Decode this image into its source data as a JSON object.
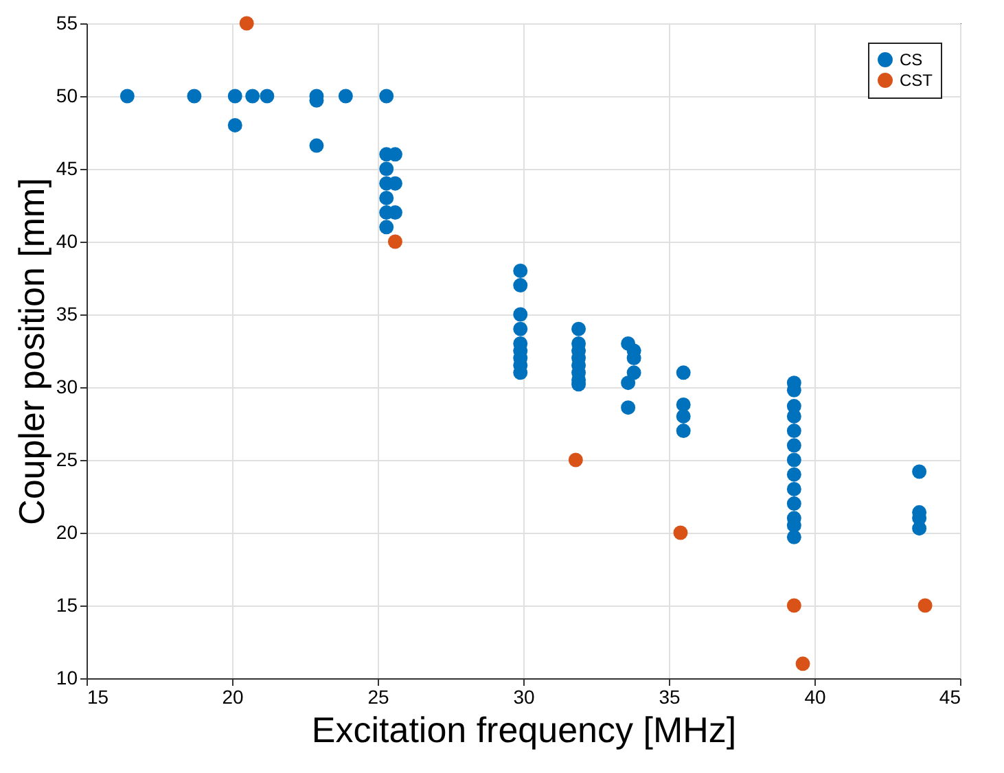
{
  "chart_data": {
    "type": "scatter",
    "xlabel": "Excitation frequency [MHz]",
    "ylabel": "Coupler position [mm]",
    "xlim": [
      15,
      45
    ],
    "xticks": [
      15,
      20,
      25,
      30,
      35,
      40,
      45
    ],
    "ylim": [
      10,
      55
    ],
    "yticks": [
      10,
      15,
      20,
      25,
      30,
      35,
      40,
      45,
      50,
      55
    ],
    "grid": true,
    "legend": "top right",
    "marker": "circle",
    "series": [
      {
        "name": "CS",
        "color": "#0072bd",
        "x": [
          16.4,
          18.7,
          20.1,
          20.1,
          20.7,
          21.2,
          22.9,
          22.9,
          22.9,
          23.9,
          25.3,
          25.3,
          25.3,
          25.3,
          25.3,
          25.3,
          25.3,
          25.6,
          25.6,
          25.6,
          29.9,
          29.9,
          29.9,
          29.9,
          29.9,
          29.9,
          29.9,
          29.9,
          29.9,
          31.9,
          31.9,
          31.9,
          31.9,
          31.9,
          31.9,
          31.9,
          31.9,
          33.6,
          33.6,
          33.6,
          33.8,
          33.8,
          33.8,
          35.5,
          35.5,
          35.5,
          35.5,
          39.3,
          39.3,
          39.3,
          39.3,
          39.3,
          39.3,
          39.3,
          39.3,
          39.3,
          39.3,
          39.3,
          39.3,
          39.3,
          43.6,
          43.6,
          43.6,
          43.6
        ],
        "values": [
          50,
          50,
          50,
          48,
          50,
          50,
          50,
          49.7,
          46.6,
          50,
          50,
          46,
          45,
          44,
          43,
          42,
          41,
          46,
          44,
          42,
          38,
          37,
          35,
          34,
          33,
          32.5,
          32,
          31.5,
          31,
          34,
          33,
          32.5,
          32,
          31.5,
          31,
          30.5,
          30.2,
          33,
          30.3,
          28.6,
          32.5,
          32,
          31,
          31,
          28.8,
          28,
          27,
          30.3,
          29.8,
          28.7,
          28,
          27,
          26,
          25,
          24,
          23,
          22,
          21,
          20.5,
          19.7,
          24.2,
          21.4,
          21,
          20.3
        ]
      },
      {
        "name": "CST",
        "color": "#d95319",
        "x": [
          20.5,
          25.6,
          31.8,
          35.4,
          39.3,
          39.6,
          43.8
        ],
        "values": [
          55,
          40,
          25,
          20,
          15,
          11,
          15
        ]
      }
    ]
  }
}
